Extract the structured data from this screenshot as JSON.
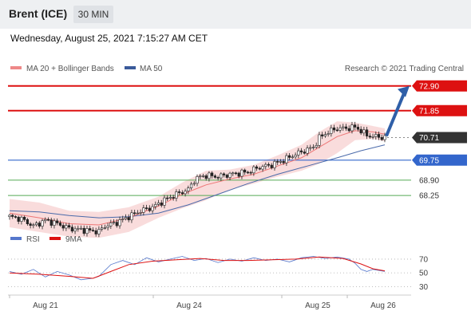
{
  "header": {
    "title": "Brent (ICE)",
    "interval": "30 MIN"
  },
  "datetime": "Wednesday, August 25, 2021 7:15:27 AM CET",
  "legend": {
    "ma20": "MA 20 + Bollinger Bands",
    "ma50": "MA 50",
    "credit": "Research © 2021 Trading Central",
    "rsi": "RSI",
    "ma9": "9MA"
  },
  "colors": {
    "resistance": "#dd1111",
    "support_blue": "#3366cc",
    "support_green": "#55aa55",
    "ma20": "#ee7777",
    "bands": "#f8d3d3",
    "ma50": "#4a6aaa",
    "price_tag": "#333333",
    "arrow": "#2f5fa8"
  },
  "chart_data": [
    {
      "type": "candlestick",
      "y_range": [
        67.0,
        73.3
      ],
      "x_labels": [
        "Aug 21",
        "Aug 24",
        "Aug 25",
        "Aug 26"
      ],
      "levels": [
        {
          "value": 72.9,
          "label": "72.90",
          "kind": "resistance"
        },
        {
          "value": 71.85,
          "label": "71.85",
          "kind": "resistance"
        },
        {
          "value": 70.71,
          "label": "70.71",
          "kind": "last"
        },
        {
          "value": 69.75,
          "label": "69.75",
          "kind": "support-major"
        },
        {
          "value": 68.9,
          "label": "68.90",
          "kind": "support"
        },
        {
          "value": 68.25,
          "label": "68.25",
          "kind": "support"
        }
      ],
      "close_path": [
        [
          0,
          67.35
        ],
        [
          4,
          67.25
        ],
        [
          8,
          66.95
        ],
        [
          12,
          67.2
        ],
        [
          16,
          67.05
        ],
        [
          20,
          66.85
        ],
        [
          24,
          66.8
        ],
        [
          27,
          66.75
        ],
        [
          30,
          66.72
        ],
        [
          32,
          66.95
        ],
        [
          36,
          67.1
        ],
        [
          40,
          67.35
        ],
        [
          44,
          67.6
        ],
        [
          48,
          67.75
        ],
        [
          52,
          68.05
        ],
        [
          56,
          68.3
        ],
        [
          60,
          68.5
        ],
        [
          62,
          68.9
        ],
        [
          64,
          69.05
        ],
        [
          66,
          69.1
        ],
        [
          70,
          69.05
        ],
        [
          74,
          69.15
        ],
        [
          80,
          69.25
        ],
        [
          84,
          69.45
        ],
        [
          88,
          69.55
        ],
        [
          92,
          69.75
        ],
        [
          96,
          70.0
        ],
        [
          100,
          70.2
        ],
        [
          102,
          70.3
        ],
        [
          104,
          70.7
        ],
        [
          107,
          70.95
        ],
        [
          110,
          71.1
        ],
        [
          113,
          71.1
        ],
        [
          116,
          71.15
        ],
        [
          118,
          71.0
        ],
        [
          120,
          70.8
        ],
        [
          123,
          70.75
        ],
        [
          126,
          70.71
        ]
      ],
      "ma20_path": [
        [
          0,
          67.5
        ],
        [
          10,
          67.3
        ],
        [
          20,
          67.05
        ],
        [
          30,
          67.0
        ],
        [
          40,
          67.3
        ],
        [
          50,
          67.8
        ],
        [
          58,
          68.3
        ],
        [
          66,
          68.7
        ],
        [
          74,
          68.95
        ],
        [
          82,
          69.15
        ],
        [
          90,
          69.5
        ],
        [
          98,
          69.85
        ],
        [
          104,
          70.3
        ],
        [
          110,
          70.75
        ],
        [
          116,
          71.0
        ],
        [
          122,
          70.95
        ],
        [
          126,
          70.85
        ]
      ],
      "ma50_path": [
        [
          0,
          67.6
        ],
        [
          10,
          67.55
        ],
        [
          20,
          67.4
        ],
        [
          30,
          67.3
        ],
        [
          40,
          67.35
        ],
        [
          50,
          67.5
        ],
        [
          60,
          67.85
        ],
        [
          70,
          68.3
        ],
        [
          80,
          68.75
        ],
        [
          90,
          69.15
        ],
        [
          100,
          69.5
        ],
        [
          110,
          69.85
        ],
        [
          118,
          70.15
        ],
        [
          126,
          70.4
        ]
      ],
      "band_upper": [
        [
          0,
          68.1
        ],
        [
          10,
          67.95
        ],
        [
          20,
          67.6
        ],
        [
          30,
          67.55
        ],
        [
          40,
          67.75
        ],
        [
          50,
          68.2
        ],
        [
          58,
          68.8
        ],
        [
          66,
          69.3
        ],
        [
          74,
          69.35
        ],
        [
          82,
          69.55
        ],
        [
          90,
          69.95
        ],
        [
          98,
          70.4
        ],
        [
          104,
          70.95
        ],
        [
          110,
          71.4
        ],
        [
          116,
          71.35
        ],
        [
          122,
          71.2
        ],
        [
          126,
          71.1
        ]
      ],
      "band_lower": [
        [
          0,
          66.9
        ],
        [
          10,
          66.7
        ],
        [
          20,
          66.5
        ],
        [
          30,
          66.45
        ],
        [
          40,
          66.7
        ],
        [
          50,
          67.3
        ],
        [
          58,
          67.7
        ],
        [
          66,
          68.05
        ],
        [
          74,
          68.5
        ],
        [
          82,
          68.75
        ],
        [
          90,
          69.05
        ],
        [
          98,
          69.3
        ],
        [
          104,
          69.6
        ],
        [
          110,
          70.05
        ],
        [
          116,
          70.6
        ],
        [
          122,
          70.65
        ],
        [
          126,
          70.55
        ]
      ],
      "forecast_target": 72.9
    },
    {
      "type": "line",
      "title": "RSI",
      "y_ticks": [
        70,
        50,
        30
      ],
      "y_range": [
        20,
        85
      ],
      "rsi_path": [
        [
          0,
          52
        ],
        [
          4,
          48
        ],
        [
          8,
          55
        ],
        [
          12,
          44
        ],
        [
          16,
          52
        ],
        [
          20,
          47
        ],
        [
          24,
          40
        ],
        [
          28,
          42
        ],
        [
          30,
          45
        ],
        [
          34,
          62
        ],
        [
          38,
          68
        ],
        [
          42,
          62
        ],
        [
          46,
          72
        ],
        [
          50,
          66
        ],
        [
          54,
          70
        ],
        [
          58,
          74
        ],
        [
          62,
          68
        ],
        [
          66,
          71
        ],
        [
          70,
          65
        ],
        [
          74,
          70
        ],
        [
          78,
          67
        ],
        [
          82,
          72
        ],
        [
          86,
          68
        ],
        [
          90,
          70
        ],
        [
          94,
          66
        ],
        [
          98,
          72
        ],
        [
          102,
          74
        ],
        [
          106,
          71
        ],
        [
          110,
          73
        ],
        [
          114,
          70
        ],
        [
          116,
          64
        ],
        [
          118,
          55
        ],
        [
          120,
          52
        ],
        [
          122,
          55
        ],
        [
          126,
          52
        ]
      ],
      "ma9_path": [
        [
          0,
          50
        ],
        [
          10,
          48
        ],
        [
          20,
          45
        ],
        [
          28,
          42
        ],
        [
          34,
          52
        ],
        [
          40,
          62
        ],
        [
          48,
          67
        ],
        [
          56,
          69
        ],
        [
          64,
          71
        ],
        [
          72,
          68
        ],
        [
          80,
          68
        ],
        [
          88,
          69
        ],
        [
          96,
          70
        ],
        [
          104,
          73
        ],
        [
          112,
          71
        ],
        [
          118,
          63
        ],
        [
          122,
          56
        ],
        [
          126,
          53
        ]
      ]
    }
  ]
}
